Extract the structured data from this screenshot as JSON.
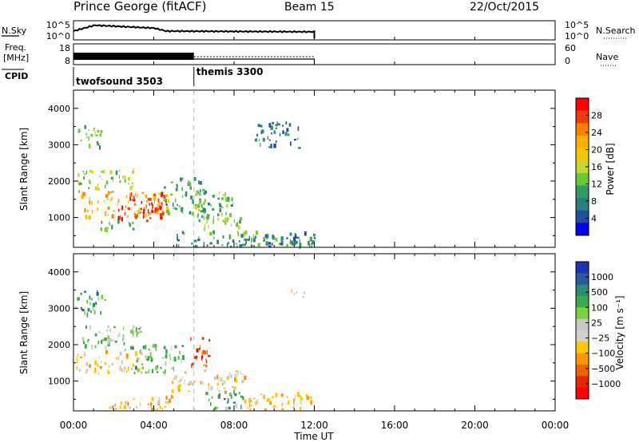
{
  "header": {
    "station": "Prince George (fitACF)",
    "beam": "Beam 15",
    "date": "22/Oct/2015"
  },
  "strip_panels": {
    "nsky": {
      "label": "N.Sky",
      "left_ticks": [
        "10^5",
        "10^0"
      ],
      "right_ticks": [
        "10^5",
        "10^0"
      ],
      "right_label": "N.Search"
    },
    "freq": {
      "label_line1": "Freq.",
      "label_line2": "[MHz]",
      "left_ticks": [
        "18",
        "8"
      ],
      "right_ticks": [
        "60",
        "0"
      ],
      "right_label": "Nave"
    },
    "cpid": {
      "label": "CPID",
      "modes": [
        {
          "name": "twofsound 3503",
          "start_hour": 0
        },
        {
          "name": "themis 3300",
          "start_hour": 6
        }
      ]
    }
  },
  "time_axis": {
    "label": "Time UT",
    "ticks": [
      "00:00",
      "04:00",
      "08:00",
      "12:00",
      "16:00",
      "20:00",
      "00:00"
    ],
    "range_hours": [
      0,
      24
    ],
    "data_end_hour": 12
  },
  "chart_data": [
    {
      "type": "heatmap",
      "ylabel": "Slant Range [km]",
      "ylim": [
        180,
        4500
      ],
      "yticks": [
        "1000",
        "2000",
        "3000",
        "4000"
      ],
      "colorbar": {
        "label": "Power [dB]",
        "ticks": [
          "28",
          "24",
          "20",
          "16",
          "12",
          "8",
          "4"
        ],
        "colors": [
          "#ff0000",
          "#f53a0a",
          "#ff7f00",
          "#ffaf00",
          "#f0c800",
          "#c8d830",
          "#66cc33",
          "#339966",
          "#2a7f7f",
          "#1e50a0",
          "#0000ff"
        ]
      },
      "regions": [
        {
          "t": [
            0.1,
            1.5
          ],
          "r": [
            2900,
            3500
          ],
          "level": 0.35
        },
        {
          "t": [
            0.2,
            3.0
          ],
          "r": [
            1700,
            2300
          ],
          "level": 0.45
        },
        {
          "t": [
            0.3,
            4.8
          ],
          "r": [
            1000,
            1700
          ],
          "level": 0.65
        },
        {
          "t": [
            2.2,
            4.6
          ],
          "r": [
            950,
            1650
          ],
          "level": 0.95
        },
        {
          "t": [
            3.6,
            4.4
          ],
          "r": [
            900,
            1400
          ],
          "level": 1.0
        },
        {
          "t": [
            1.0,
            3.0
          ],
          "r": [
            600,
            900
          ],
          "level": 0.35
        },
        {
          "t": [
            4.5,
            6.6
          ],
          "r": [
            1100,
            2100
          ],
          "level": 0.3
        },
        {
          "t": [
            6.0,
            8.0
          ],
          "r": [
            900,
            1700
          ],
          "level": 0.35
        },
        {
          "t": [
            6.5,
            8.5
          ],
          "r": [
            500,
            1200
          ],
          "level": 0.4
        },
        {
          "t": [
            5.0,
            12.0
          ],
          "r": [
            200,
            600
          ],
          "level": 0.25
        },
        {
          "t": [
            8.0,
            12.0
          ],
          "r": [
            200,
            500
          ],
          "level": 0.25
        },
        {
          "t": [
            9.0,
            11.2
          ],
          "r": [
            2900,
            3600
          ],
          "level": 0.2
        }
      ]
    },
    {
      "type": "heatmap",
      "ylabel": "Slant Range [km]",
      "ylim": [
        180,
        4500
      ],
      "yticks": [
        "1000",
        "2000",
        "3000",
        "4000"
      ],
      "colorbar": {
        "label": "Velocity [m s⁻¹]",
        "ticks": [
          "1000",
          "500",
          "100",
          "25",
          "−25",
          "−100",
          "−500",
          "−1000"
        ],
        "colors": [
          "#1e32b4",
          "#285aa0",
          "#2d8c6e",
          "#3caa4b",
          "#78d23c",
          "#c8c8c8",
          "#d2d2c8",
          "#ffc800",
          "#ff9600",
          "#f06400",
          "#e62800",
          "#ff0000"
        ]
      },
      "regions": [
        {
          "t": [
            0.1,
            1.6
          ],
          "r": [
            2800,
            3500
          ],
          "level": 0.75
        },
        {
          "t": [
            0.4,
            3.5
          ],
          "r": [
            1800,
            2500
          ],
          "level": 0.65
        },
        {
          "t": [
            0.1,
            3.2
          ],
          "r": [
            1200,
            1800
          ],
          "level": 0.42
        },
        {
          "t": [
            3.0,
            5.6
          ],
          "r": [
            1200,
            2000
          ],
          "level": 0.68
        },
        {
          "t": [
            5.8,
            6.8
          ],
          "r": [
            1300,
            2200
          ],
          "level": 0.15
        },
        {
          "t": [
            4.8,
            8.5
          ],
          "r": [
            700,
            1300
          ],
          "level": 0.4
        },
        {
          "t": [
            6.5,
            8.5
          ],
          "r": [
            200,
            700
          ],
          "level": 0.72
        },
        {
          "t": [
            8.5,
            12.0
          ],
          "r": [
            200,
            650
          ],
          "level": 0.38
        },
        {
          "t": [
            1.5,
            5.0
          ],
          "r": [
            200,
            600
          ],
          "level": 0.3
        },
        {
          "t": [
            10.5,
            11.5
          ],
          "r": [
            3300,
            3500
          ],
          "level": 0.45
        }
      ]
    }
  ]
}
